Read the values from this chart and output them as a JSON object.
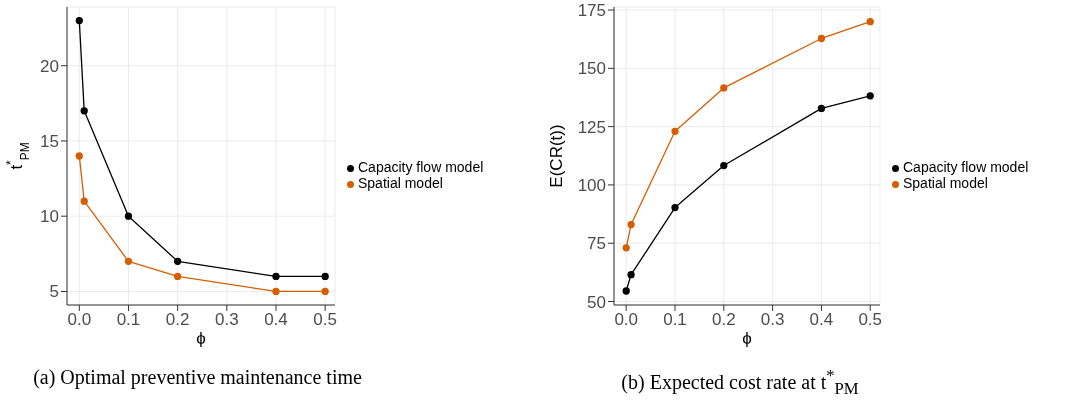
{
  "chart_data": [
    {
      "type": "line",
      "x": [
        0,
        0.01,
        0.1,
        0.2,
        0.4,
        0.5
      ],
      "xlabel": "ϕ",
      "ylabel": "t$^{*}$$_{PM}$",
      "xlim": [
        -0.025,
        0.52
      ],
      "xticks": [
        {
          "value": 0,
          "label": "0.0"
        },
        0.1,
        0.2,
        0.3,
        0.4,
        0.5
      ],
      "ylim": [
        4.1,
        23.9
      ],
      "yticks": [
        5,
        10,
        15,
        20
      ],
      "grid": true,
      "legend": "right",
      "marker": "circle",
      "line_style": "solid",
      "series": [
        {
          "name": "Capacity flow model",
          "color": "#000000",
          "values": [
            23,
            17,
            10,
            7,
            6,
            6
          ]
        },
        {
          "name": "Spatial model",
          "color": "#d55e00",
          "values": [
            14,
            11,
            7,
            6,
            5,
            5
          ]
        }
      ],
      "annotations": [
        "(a) Optimal preventive maintenance time"
      ]
    },
    {
      "type": "line",
      "x": [
        0,
        0.01,
        0.1,
        0.2,
        0.4,
        0.5
      ],
      "xlabel": "ϕ",
      "ylabel": "E(CR(t))",
      "xlim": [
        -0.025,
        0.52
      ],
      "xticks": [
        {
          "value": 0,
          "label": "0.0"
        },
        0.1,
        0.2,
        0.3,
        0.4,
        0.5
      ],
      "ylim": [
        48.5,
        176.3
      ],
      "yticks": [
        50,
        75,
        100,
        125,
        150,
        175
      ],
      "grid": true,
      "legend": "right",
      "marker": "circle",
      "line_style": "solid",
      "series": [
        {
          "name": "Capacity flow model",
          "color": "#000000",
          "values": [
            54.5,
            61.5,
            90.3,
            108.3,
            132.8,
            138.2
          ]
        },
        {
          "name": "Spatial model",
          "color": "#d55e00",
          "values": [
            73,
            83,
            123,
            141.6,
            162.8,
            170
          ]
        }
      ],
      "annotations": [
        "(b) Expected cost rate at t$^{*}$$_{PM}$"
      ]
    }
  ]
}
